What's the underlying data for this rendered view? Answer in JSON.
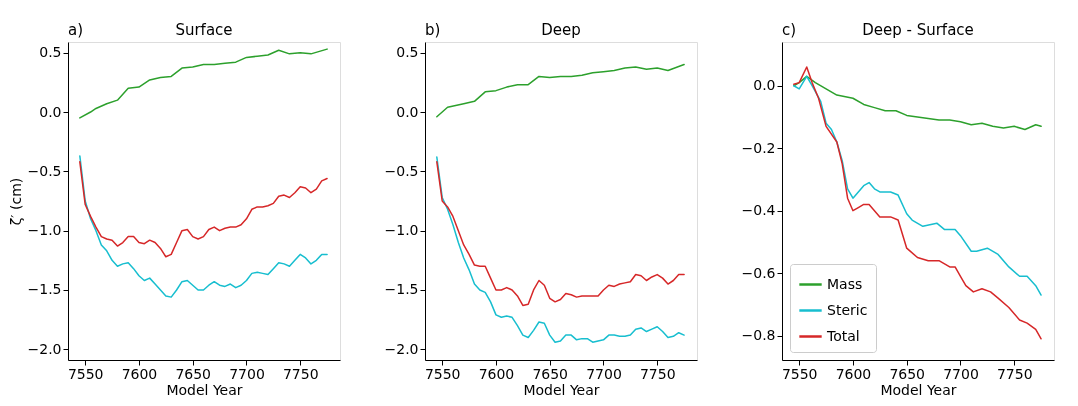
{
  "chart_data": [
    {
      "type": "line",
      "title": "Surface",
      "annotations": [
        "a)"
      ],
      "xlabel": "Model Year",
      "ylabel": "ζ′ (cm)",
      "xlim": [
        7534,
        7787
      ],
      "xticks": [
        7550,
        7600,
        7650,
        7700,
        7750
      ],
      "ylim": [
        -2.09,
        0.59
      ],
      "yticks": [
        {
          "value": -2,
          "label": "−2.0"
        },
        {
          "value": -1.5,
          "label": "−1.5"
        },
        {
          "value": -1,
          "label": "−1.0"
        },
        {
          "value": -0.5,
          "label": "−0.5"
        },
        {
          "value": 0,
          "label": "0.0"
        },
        {
          "value": 0.5,
          "label": "0.5"
        }
      ],
      "grid": false,
      "series": [
        {
          "color": "#2ca02c",
          "x": [
            7545,
            7555,
            7560,
            7570,
            7580,
            7590,
            7600,
            7610,
            7620,
            7630,
            7640,
            7650,
            7660,
            7670,
            7680,
            7690,
            7700,
            7710,
            7720,
            7730,
            7740,
            7750,
            7760,
            7775
          ],
          "values": [
            -0.05,
            0.0,
            0.03,
            0.07,
            0.1,
            0.2,
            0.21,
            0.27,
            0.29,
            0.3,
            0.37,
            0.38,
            0.4,
            0.4,
            0.41,
            0.42,
            0.46,
            0.47,
            0.48,
            0.52,
            0.49,
            0.5,
            0.49,
            0.53
          ]
        },
        {
          "color": "#17becf",
          "x": [
            7545,
            7550,
            7555,
            7560,
            7565,
            7570,
            7575,
            7580,
            7585,
            7590,
            7595,
            7600,
            7605,
            7610,
            7615,
            7620,
            7625,
            7630,
            7635,
            7640,
            7645,
            7650,
            7655,
            7660,
            7665,
            7670,
            7675,
            7680,
            7685,
            7690,
            7695,
            7700,
            7705,
            7710,
            7715,
            7720,
            7725,
            7730,
            7735,
            7740,
            7745,
            7750,
            7755,
            7760,
            7765,
            7770,
            7775
          ],
          "values": [
            -0.37,
            -0.75,
            -0.9,
            -1.0,
            -1.12,
            -1.17,
            -1.25,
            -1.3,
            -1.28,
            -1.27,
            -1.32,
            -1.38,
            -1.42,
            -1.4,
            -1.45,
            -1.5,
            -1.55,
            -1.56,
            -1.5,
            -1.43,
            -1.42,
            -1.46,
            -1.5,
            -1.5,
            -1.46,
            -1.43,
            -1.46,
            -1.47,
            -1.45,
            -1.48,
            -1.46,
            -1.42,
            -1.36,
            -1.35,
            -1.36,
            -1.37,
            -1.32,
            -1.27,
            -1.28,
            -1.3,
            -1.25,
            -1.2,
            -1.23,
            -1.28,
            -1.25,
            -1.2,
            -1.2
          ]
        },
        {
          "color": "#d62728",
          "x": [
            7545,
            7550,
            7555,
            7560,
            7565,
            7570,
            7575,
            7580,
            7585,
            7590,
            7595,
            7600,
            7605,
            7610,
            7615,
            7620,
            7625,
            7630,
            7635,
            7640,
            7645,
            7650,
            7655,
            7660,
            7665,
            7670,
            7675,
            7680,
            7685,
            7690,
            7695,
            7700,
            7705,
            7710,
            7715,
            7720,
            7725,
            7730,
            7735,
            7740,
            7745,
            7750,
            7755,
            7760,
            7765,
            7770,
            7775
          ],
          "values": [
            -0.42,
            -0.78,
            -0.88,
            -0.97,
            -1.05,
            -1.07,
            -1.08,
            -1.13,
            -1.1,
            -1.05,
            -1.05,
            -1.1,
            -1.11,
            -1.08,
            -1.1,
            -1.15,
            -1.22,
            -1.2,
            -1.1,
            -1.0,
            -0.99,
            -1.05,
            -1.07,
            -1.05,
            -0.99,
            -0.97,
            -1.0,
            -0.98,
            -0.97,
            -0.97,
            -0.95,
            -0.9,
            -0.82,
            -0.8,
            -0.8,
            -0.79,
            -0.77,
            -0.71,
            -0.7,
            -0.72,
            -0.68,
            -0.63,
            -0.64,
            -0.68,
            -0.65,
            -0.58,
            -0.56
          ]
        }
      ]
    },
    {
      "type": "line",
      "title": "Deep",
      "annotations": [
        "b)"
      ],
      "xlabel": "Model Year",
      "xlim": [
        7534,
        7787
      ],
      "xticks": [
        7550,
        7600,
        7650,
        7700,
        7750
      ],
      "ylim": [
        -2.09,
        0.59
      ],
      "yticks": [
        {
          "value": -2,
          "label": "−2.0"
        },
        {
          "value": -1.5,
          "label": "−1.5"
        },
        {
          "value": -1,
          "label": "−1.0"
        },
        {
          "value": -0.5,
          "label": "−0.5"
        },
        {
          "value": 0,
          "label": "0.0"
        },
        {
          "value": 0.5,
          "label": "0.5"
        }
      ],
      "grid": false,
      "series": [
        {
          "color": "#2ca02c",
          "x": [
            7545,
            7555,
            7570,
            7580,
            7590,
            7600,
            7610,
            7620,
            7630,
            7640,
            7650,
            7660,
            7670,
            7680,
            7690,
            7700,
            7710,
            7720,
            7730,
            7740,
            7750,
            7760,
            7775
          ],
          "values": [
            -0.04,
            0.04,
            0.07,
            0.09,
            0.17,
            0.18,
            0.21,
            0.23,
            0.23,
            0.3,
            0.29,
            0.3,
            0.3,
            0.31,
            0.33,
            0.34,
            0.35,
            0.37,
            0.38,
            0.36,
            0.37,
            0.35,
            0.4
          ]
        },
        {
          "color": "#17becf",
          "x": [
            7545,
            7550,
            7555,
            7560,
            7565,
            7570,
            7575,
            7580,
            7585,
            7590,
            7595,
            7600,
            7605,
            7610,
            7615,
            7620,
            7625,
            7630,
            7635,
            7640,
            7645,
            7650,
            7655,
            7660,
            7665,
            7670,
            7675,
            7680,
            7685,
            7690,
            7695,
            7700,
            7705,
            7710,
            7715,
            7720,
            7725,
            7730,
            7735,
            7740,
            7745,
            7750,
            7755,
            7760,
            7765,
            7770,
            7775
          ],
          "values": [
            -0.38,
            -0.72,
            -0.82,
            -0.95,
            -1.1,
            -1.23,
            -1.33,
            -1.45,
            -1.5,
            -1.52,
            -1.6,
            -1.71,
            -1.73,
            -1.72,
            -1.73,
            -1.8,
            -1.88,
            -1.9,
            -1.84,
            -1.77,
            -1.78,
            -1.88,
            -1.94,
            -1.93,
            -1.88,
            -1.88,
            -1.92,
            -1.91,
            -1.91,
            -1.94,
            -1.93,
            -1.92,
            -1.88,
            -1.88,
            -1.89,
            -1.89,
            -1.88,
            -1.83,
            -1.82,
            -1.85,
            -1.83,
            -1.81,
            -1.85,
            -1.9,
            -1.89,
            -1.86,
            -1.88
          ]
        },
        {
          "color": "#d62728",
          "x": [
            7545,
            7550,
            7555,
            7560,
            7565,
            7570,
            7575,
            7580,
            7585,
            7590,
            7595,
            7600,
            7605,
            7610,
            7615,
            7620,
            7625,
            7630,
            7635,
            7640,
            7645,
            7650,
            7655,
            7660,
            7665,
            7670,
            7675,
            7680,
            7685,
            7690,
            7695,
            7700,
            7705,
            7710,
            7715,
            7720,
            7725,
            7730,
            7735,
            7740,
            7745,
            7750,
            7755,
            7760,
            7765,
            7770,
            7775
          ],
          "values": [
            -0.42,
            -0.75,
            -0.8,
            -0.88,
            -1.0,
            -1.12,
            -1.2,
            -1.29,
            -1.3,
            -1.3,
            -1.4,
            -1.5,
            -1.5,
            -1.48,
            -1.5,
            -1.55,
            -1.63,
            -1.62,
            -1.5,
            -1.42,
            -1.46,
            -1.57,
            -1.6,
            -1.58,
            -1.53,
            -1.54,
            -1.56,
            -1.55,
            -1.55,
            -1.55,
            -1.55,
            -1.5,
            -1.46,
            -1.47,
            -1.45,
            -1.44,
            -1.43,
            -1.37,
            -1.38,
            -1.42,
            -1.39,
            -1.37,
            -1.4,
            -1.45,
            -1.42,
            -1.37,
            -1.37
          ]
        }
      ]
    },
    {
      "type": "line",
      "title": "Deep - Surface",
      "annotations": [
        "c)"
      ],
      "xlabel": "Model Year",
      "xlim": [
        7534,
        7787
      ],
      "xticks": [
        7550,
        7600,
        7650,
        7700,
        7750
      ],
      "ylim": [
        -0.878,
        0.14
      ],
      "yticks": [
        {
          "value": -0.8,
          "label": "−0.8"
        },
        {
          "value": -0.6,
          "label": "−0.6"
        },
        {
          "value": -0.4,
          "label": "−0.4"
        },
        {
          "value": -0.2,
          "label": "−0.2"
        },
        {
          "value": 0,
          "label": "0.0"
        }
      ],
      "grid": false,
      "legend": "bottom left",
      "series": [
        {
          "name": "Mass",
          "color": "#2ca02c",
          "x": [
            7545,
            7550,
            7557,
            7565,
            7575,
            7585,
            7600,
            7610,
            7620,
            7630,
            7640,
            7650,
            7660,
            7670,
            7680,
            7690,
            7700,
            7710,
            7720,
            7730,
            7740,
            7750,
            7760,
            7770,
            7775
          ],
          "values": [
            0.0,
            0.01,
            0.03,
            0.01,
            -0.01,
            -0.03,
            -0.04,
            -0.06,
            -0.07,
            -0.08,
            -0.08,
            -0.095,
            -0.1,
            -0.105,
            -0.11,
            -0.11,
            -0.115,
            -0.125,
            -0.12,
            -0.13,
            -0.135,
            -0.13,
            -0.14,
            -0.125,
            -0.13
          ]
        },
        {
          "name": "Steric",
          "color": "#17becf",
          "x": [
            7545,
            7550,
            7557,
            7562,
            7570,
            7575,
            7580,
            7585,
            7590,
            7595,
            7600,
            7605,
            7610,
            7615,
            7620,
            7625,
            7635,
            7642,
            7650,
            7655,
            7665,
            7678,
            7685,
            7695,
            7700,
            7710,
            7715,
            7725,
            7735,
            7745,
            7755,
            7762,
            7770,
            7775
          ],
          "values": [
            0.0,
            -0.01,
            0.03,
            0.0,
            -0.05,
            -0.12,
            -0.14,
            -0.18,
            -0.24,
            -0.33,
            -0.36,
            -0.34,
            -0.32,
            -0.31,
            -0.33,
            -0.34,
            -0.34,
            -0.35,
            -0.41,
            -0.43,
            -0.45,
            -0.44,
            -0.46,
            -0.46,
            -0.48,
            -0.53,
            -0.53,
            -0.52,
            -0.54,
            -0.58,
            -0.61,
            -0.61,
            -0.64,
            -0.67
          ]
        },
        {
          "name": "Total",
          "color": "#d62728",
          "x": [
            7545,
            7550,
            7557,
            7562,
            7568,
            7575,
            7585,
            7590,
            7595,
            7600,
            7605,
            7610,
            7615,
            7620,
            7625,
            7635,
            7642,
            7650,
            7660,
            7670,
            7680,
            7690,
            7695,
            7700,
            7705,
            7712,
            7720,
            7728,
            7735,
            7745,
            7755,
            7762,
            7770,
            7775
          ],
          "values": [
            0.005,
            0.01,
            0.06,
            0.01,
            -0.04,
            -0.13,
            -0.18,
            -0.25,
            -0.36,
            -0.4,
            -0.39,
            -0.38,
            -0.38,
            -0.4,
            -0.42,
            -0.42,
            -0.43,
            -0.52,
            -0.55,
            -0.56,
            -0.56,
            -0.58,
            -0.58,
            -0.61,
            -0.64,
            -0.66,
            -0.65,
            -0.66,
            -0.68,
            -0.71,
            -0.75,
            -0.76,
            -0.78,
            -0.81
          ]
        }
      ]
    }
  ]
}
